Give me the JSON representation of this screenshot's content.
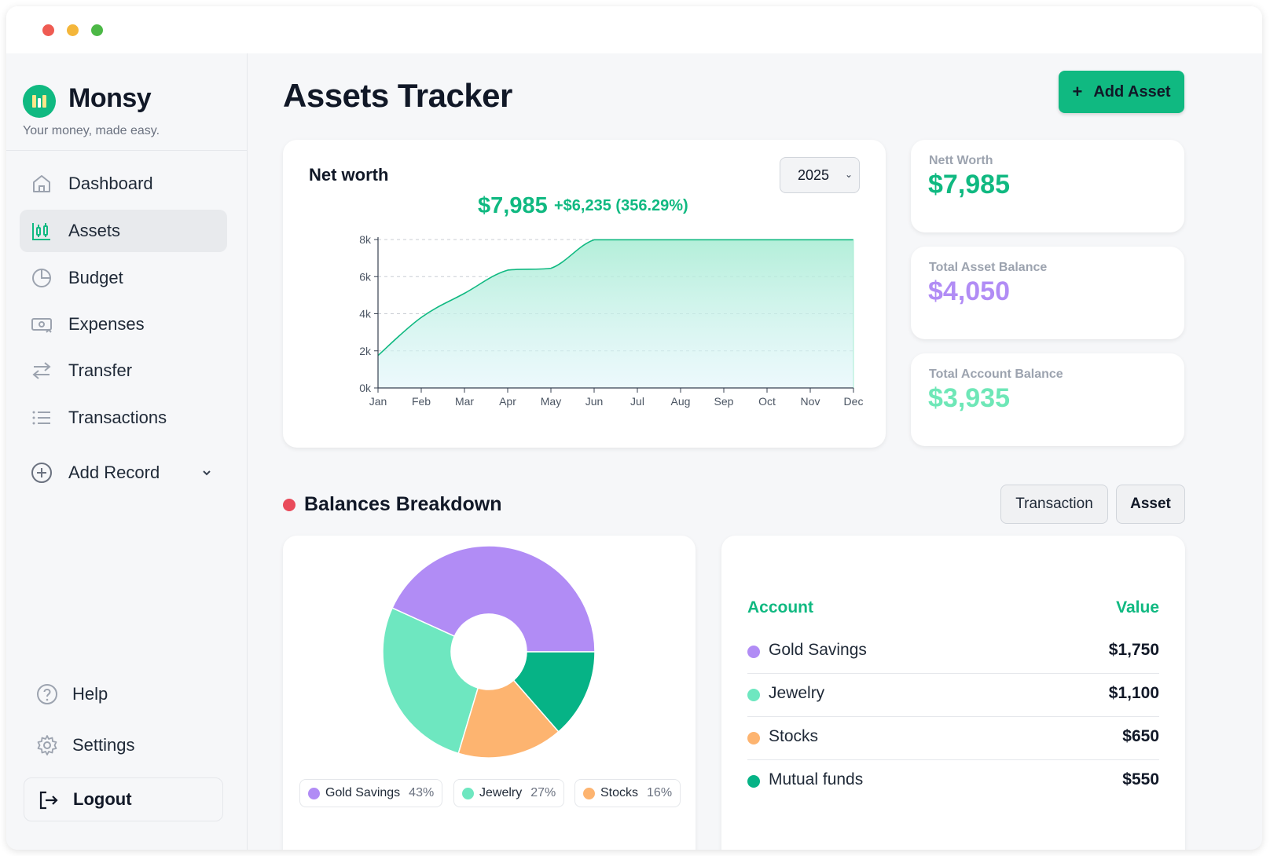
{
  "brand": {
    "name": "Monsy",
    "tagline": "Your money, made easy."
  },
  "nav": {
    "items": [
      {
        "label": "Dashboard",
        "icon": "home-icon",
        "active": false
      },
      {
        "label": "Assets",
        "icon": "assets-icon",
        "active": true
      },
      {
        "label": "Budget",
        "icon": "pie-icon",
        "active": false
      },
      {
        "label": "Expenses",
        "icon": "expenses-icon",
        "active": false
      },
      {
        "label": "Transfer",
        "icon": "transfer-icon",
        "active": false
      },
      {
        "label": "Transactions",
        "icon": "list-icon",
        "active": false
      }
    ],
    "add_record": "Add Record",
    "help": "Help",
    "settings": "Settings",
    "logout": "Logout"
  },
  "header": {
    "title": "Assets Tracker",
    "add_button": "Add Asset",
    "add_button_icon": "+"
  },
  "net_worth_card": {
    "title": "Net worth",
    "year": "2025",
    "value": "$7,985",
    "change": "+$6,235 (356.29%)"
  },
  "stats": [
    {
      "label": "Nett Worth",
      "value": "$7,985",
      "color": "#10b981"
    },
    {
      "label": "Total Asset Balance",
      "value": "$4,050",
      "color": "#b18cf5"
    },
    {
      "label": "Total Account Balance",
      "value": "$3,935",
      "color": "#6ee7b7"
    }
  ],
  "breakdown": {
    "title": "Balances Breakdown",
    "toggle": [
      "Transaction",
      "Asset"
    ],
    "table_headers": {
      "account": "Account",
      "value": "Value"
    },
    "rows": [
      {
        "name": "Gold Savings",
        "value": "$1,750",
        "color": "#b18cf5"
      },
      {
        "name": "Jewelry",
        "value": "$1,100",
        "color": "#6ee7c0"
      },
      {
        "name": "Stocks",
        "value": "$650",
        "color": "#fdb470"
      },
      {
        "name": "Mutual funds",
        "value": "$550",
        "color": "#06b386"
      }
    ],
    "legend": [
      {
        "name": "Gold Savings",
        "pct": "43%",
        "color": "#b18cf5"
      },
      {
        "name": "Jewelry",
        "pct": "27%",
        "color": "#6ee7c0"
      },
      {
        "name": "Stocks",
        "pct": "16%",
        "color": "#fdb470"
      }
    ]
  },
  "chart_data": [
    {
      "type": "area",
      "title": "Net worth",
      "categories": [
        "Jan",
        "Feb",
        "Mar",
        "Apr",
        "May",
        "Jun",
        "Jul",
        "Aug",
        "Sep",
        "Oct",
        "Nov",
        "Dec"
      ],
      "yticks": [
        "0k",
        "2k",
        "4k",
        "6k",
        "8k"
      ],
      "ylim": [
        0,
        8000
      ],
      "series": [
        {
          "values": [
            1750,
            3800,
            5100,
            6350,
            6450,
            7985,
            7985,
            7985,
            7985,
            7985,
            7985,
            7985
          ],
          "color": "#10b981"
        }
      ],
      "grid": true
    },
    {
      "type": "pie",
      "labels": [
        "Gold Savings",
        "Jewelry",
        "Stocks",
        "Mutual funds"
      ],
      "values": [
        1750,
        1100,
        650,
        550
      ],
      "colors": [
        "#b18cf5",
        "#6ee7c0",
        "#fdb470",
        "#06b386"
      ]
    }
  ]
}
